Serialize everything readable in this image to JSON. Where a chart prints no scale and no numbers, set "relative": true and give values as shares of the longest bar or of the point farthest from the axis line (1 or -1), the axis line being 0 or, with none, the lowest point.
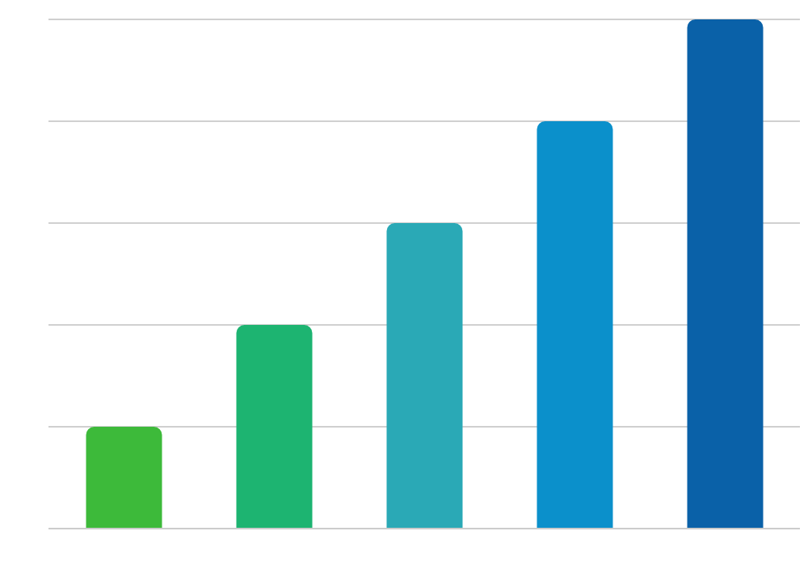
{
  "chart_data": {
    "type": "bar",
    "relative": true,
    "categories": [
      null,
      null,
      null,
      null,
      null
    ],
    "values": [
      0.2,
      0.4,
      0.6,
      0.8,
      1
    ],
    "colors": [
      "#3dba3a",
      "#1db471",
      "#2aa9b6",
      "#0b90cb",
      "#0a61a8"
    ],
    "grid": "y"
  }
}
